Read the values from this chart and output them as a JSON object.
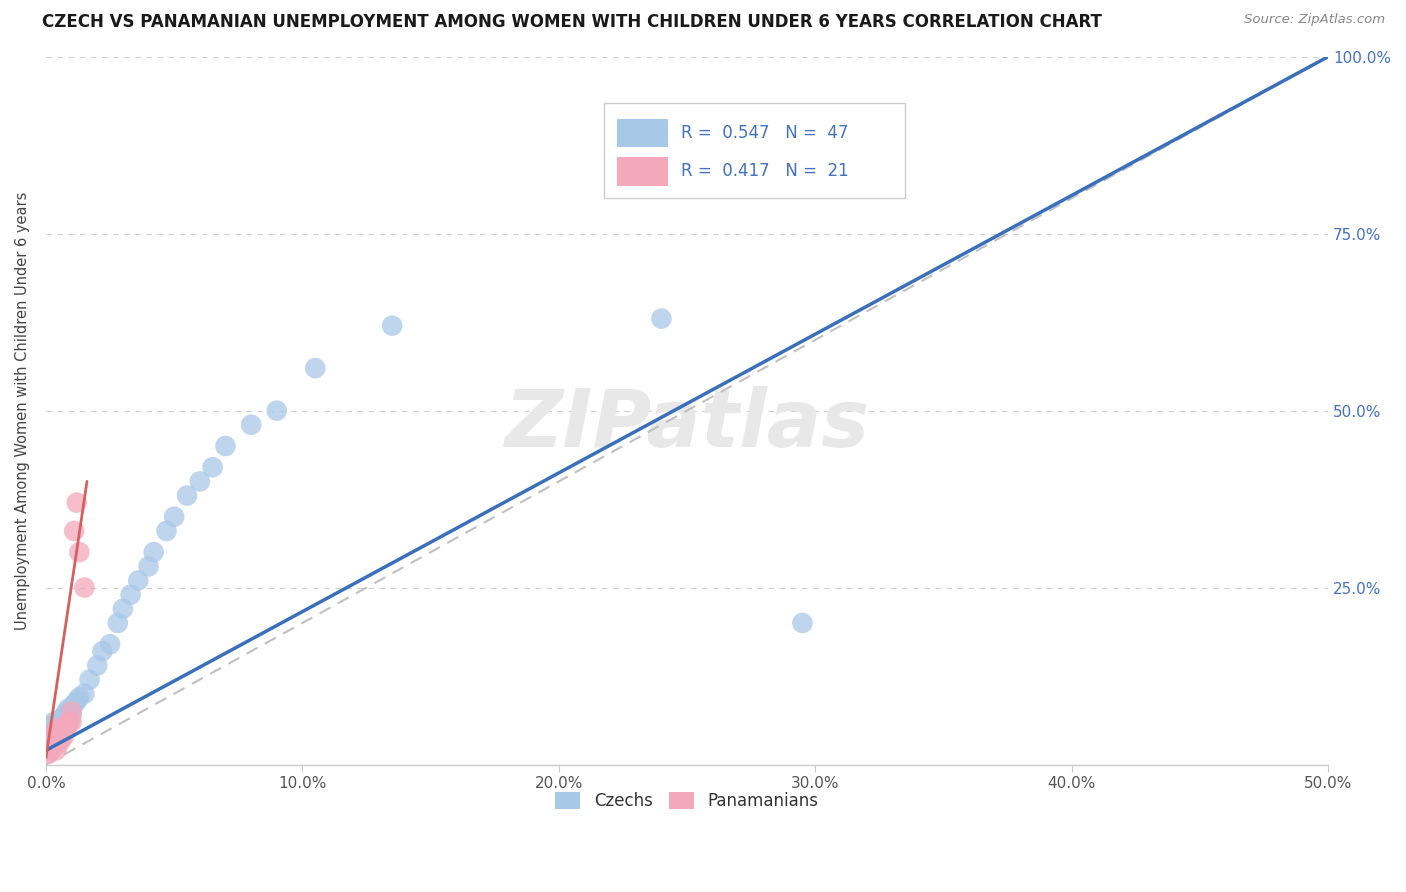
{
  "title": "CZECH VS PANAMANIAN UNEMPLOYMENT AMONG WOMEN WITH CHILDREN UNDER 6 YEARS CORRELATION CHART",
  "source": "Source: ZipAtlas.com",
  "ylabel": "Unemployment Among Women with Children Under 6 years",
  "xlim": [
    0.0,
    0.5
  ],
  "ylim": [
    0.0,
    1.0
  ],
  "xticks": [
    0.0,
    0.1,
    0.2,
    0.3,
    0.4,
    0.5
  ],
  "yticks": [
    0.0,
    0.25,
    0.5,
    0.75,
    1.0
  ],
  "xtick_labels": [
    "0.0%",
    "10.0%",
    "20.0%",
    "30.0%",
    "40.0%",
    "50.0%"
  ],
  "ytick_labels_right": [
    "",
    "25.0%",
    "50.0%",
    "75.0%",
    "100.0%"
  ],
  "czech_R": 0.547,
  "czech_N": 47,
  "panama_R": 0.417,
  "panama_N": 21,
  "czech_color": "#a8c8e8",
  "panama_color": "#f4a8bc",
  "czech_line_color": "#3a6fbc",
  "panama_line_color": "#d46060",
  "ref_line_color": "#c0c0c0",
  "watermark": "ZIPatlas",
  "background_color": "#ffffff",
  "czech_x": [
    0.001,
    0.001,
    0.002,
    0.002,
    0.002,
    0.003,
    0.003,
    0.003,
    0.004,
    0.004,
    0.005,
    0.005,
    0.006,
    0.006,
    0.007,
    0.007,
    0.008,
    0.008,
    0.009,
    0.009,
    0.01,
    0.011,
    0.012,
    0.013,
    0.015,
    0.017,
    0.02,
    0.022,
    0.025,
    0.028,
    0.03,
    0.033,
    0.036,
    0.04,
    0.042,
    0.047,
    0.05,
    0.055,
    0.06,
    0.065,
    0.07,
    0.08,
    0.09,
    0.105,
    0.135,
    0.24,
    0.295
  ],
  "czech_y": [
    0.02,
    0.035,
    0.025,
    0.04,
    0.055,
    0.03,
    0.045,
    0.06,
    0.035,
    0.05,
    0.04,
    0.06,
    0.045,
    0.065,
    0.05,
    0.068,
    0.055,
    0.075,
    0.06,
    0.08,
    0.07,
    0.085,
    0.09,
    0.095,
    0.1,
    0.12,
    0.14,
    0.16,
    0.17,
    0.2,
    0.22,
    0.24,
    0.26,
    0.28,
    0.3,
    0.33,
    0.35,
    0.38,
    0.4,
    0.42,
    0.45,
    0.48,
    0.5,
    0.56,
    0.62,
    0.63,
    0.2
  ],
  "panama_x": [
    0.001,
    0.001,
    0.002,
    0.002,
    0.003,
    0.003,
    0.004,
    0.004,
    0.005,
    0.005,
    0.006,
    0.007,
    0.007,
    0.008,
    0.009,
    0.01,
    0.01,
    0.011,
    0.012,
    0.013,
    0.015
  ],
  "panama_y": [
    0.015,
    0.025,
    0.02,
    0.035,
    0.025,
    0.04,
    0.02,
    0.05,
    0.03,
    0.045,
    0.035,
    0.04,
    0.055,
    0.05,
    0.06,
    0.06,
    0.075,
    0.33,
    0.37,
    0.3,
    0.25
  ],
  "czech_line_x": [
    0.0,
    0.5
  ],
  "czech_line_y": [
    0.02,
    1.0
  ],
  "panama_line_x": [
    0.0,
    0.016
  ],
  "panama_line_y": [
    0.01,
    0.4
  ]
}
